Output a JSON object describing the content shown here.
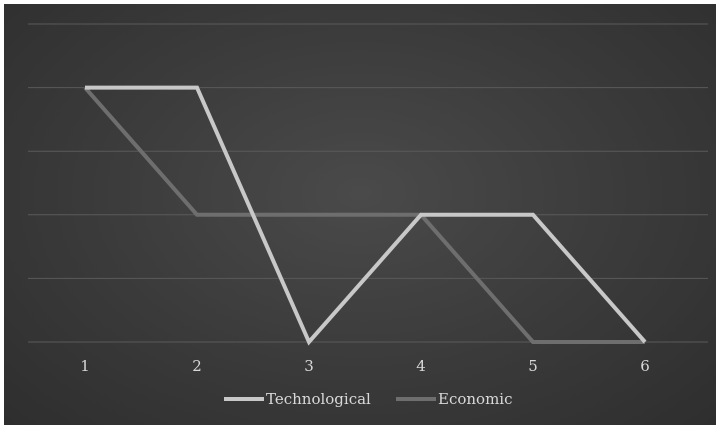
{
  "chart_data": {
    "type": "line",
    "categories": [
      "1",
      "2",
      "3",
      "4",
      "5",
      "6"
    ],
    "ylim": [
      0,
      4
    ],
    "grid": true,
    "legend_position": "bottom",
    "series": [
      {
        "name": "Technological",
        "values": [
          4,
          4,
          0,
          2,
          2,
          0
        ],
        "color": "#c8c8c8"
      },
      {
        "name": "Economic",
        "values": [
          4,
          2,
          2,
          2,
          0,
          0
        ],
        "color": "#6e6e6e"
      }
    ]
  }
}
